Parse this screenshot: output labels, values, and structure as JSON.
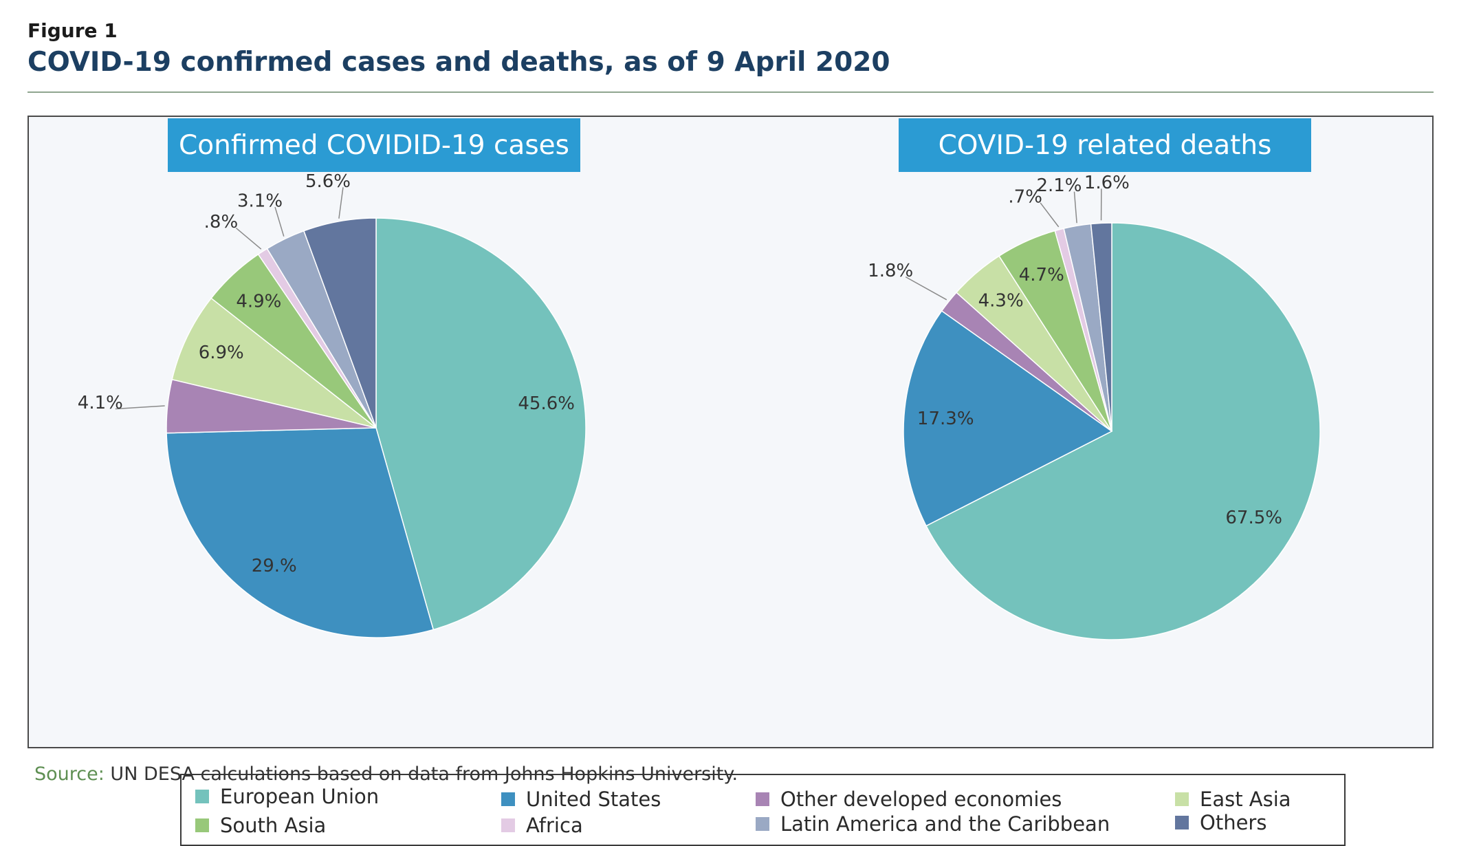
{
  "figure": {
    "label": "Figure 1",
    "title": "COVID-19 confirmed cases and deaths, as of 9 April 2020",
    "source_label": "Source:",
    "source_text": " UN DESA calculations based on data from Johns Hopkins University."
  },
  "colors": {
    "European Union": "#74c2bc",
    "United States": "#3e90c0",
    "Other developed economies": "#a884b4",
    "East Asia": "#c8e0a6",
    "South Asia": "#98c87a",
    "Africa": "#e3cbe4",
    "Latin America and the Caribbean": "#9aa9c4",
    "Others": "#62769e",
    "header": "#2b9bd3"
  },
  "legend": {
    "items": [
      "European Union",
      "United States",
      "Other developed economies",
      "East Asia",
      "South Asia",
      "Africa",
      "Latin America and the Caribbean",
      "Others"
    ]
  },
  "chart_data": [
    {
      "type": "pie",
      "title": "Confirmed COVID​I​D-19 cases",
      "categories": [
        "European Union",
        "United States",
        "Other developed economies",
        "East Asia",
        "South Asia",
        "Africa",
        "Latin America and the Caribbean",
        "Others"
      ],
      "values": [
        45.6,
        29.0,
        4.1,
        6.9,
        4.9,
        0.8,
        3.1,
        5.6
      ],
      "labels": [
        "45.6%",
        "29.%",
        "4.1%",
        "6.9%",
        "4.9%",
        ".8%",
        "3.1%",
        "5.6%"
      ]
    },
    {
      "type": "pie",
      "title": "COVID-19 related deaths",
      "categories": [
        "European Union",
        "United States",
        "Other developed economies",
        "East Asia",
        "South Asia",
        "Africa",
        "Latin America and the Caribbean",
        "Others"
      ],
      "values": [
        67.5,
        17.3,
        1.8,
        4.3,
        4.7,
        0.7,
        2.1,
        1.6
      ],
      "labels": [
        "67.5%",
        "17.3%",
        "1.8%",
        "4.3%",
        "4.7%",
        ".7%",
        "2.1%",
        "1.6%"
      ]
    }
  ]
}
